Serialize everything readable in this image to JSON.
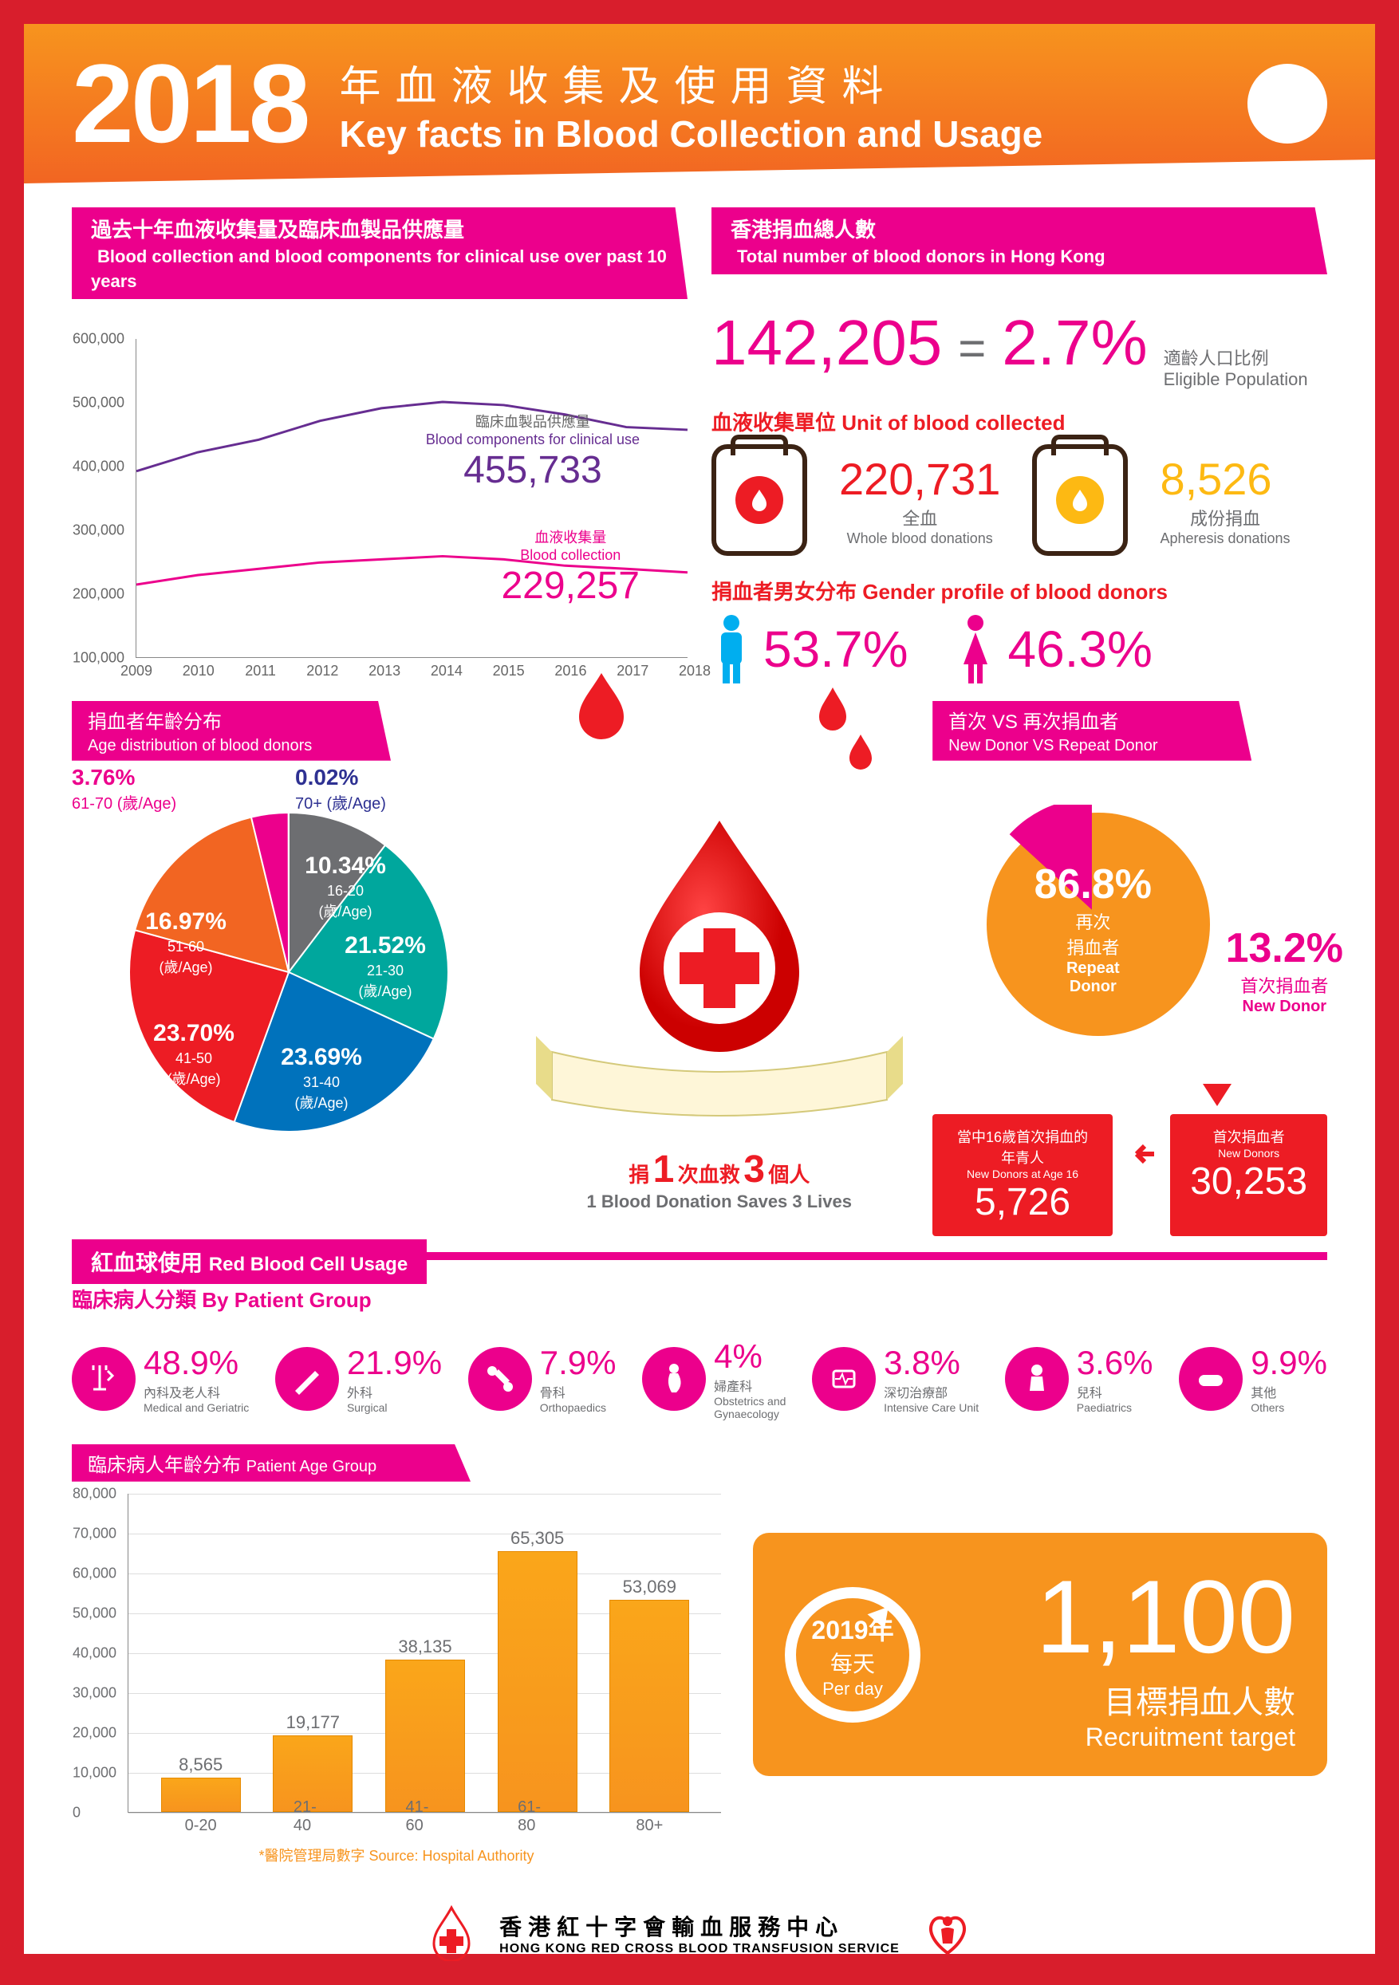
{
  "header": {
    "year": "2018",
    "title_cn": "年血液收集及使用資料",
    "title_en": "Key facts in Blood Collection and Usage"
  },
  "colors": {
    "red_primary": "#d81e2c",
    "magenta": "#ec008c",
    "orange": "#f7941e",
    "blood_red": "#ed1c24",
    "purple": "#662d91",
    "teal": "#00a79d",
    "blue": "#0072bc",
    "gray": "#6d6e71",
    "yellow": "#fdb913"
  },
  "line_chart": {
    "title_cn": "過去十年血液收集量及臨床血製品供應量",
    "title_en": "Blood collection and blood components for clinical use over past 10 years",
    "ylim": [
      100000,
      600000
    ],
    "ytick_step": 100000,
    "years": [
      "2009",
      "2010",
      "2011",
      "2012",
      "2013",
      "2014",
      "2015",
      "2016",
      "2017",
      "2018"
    ],
    "series": {
      "clinical": {
        "label_cn": "臨床血製品供應量",
        "label_en": "Blood components for clinical use",
        "value_label": "455,733",
        "color": "#662d91",
        "values": [
          390000,
          420000,
          440000,
          470000,
          490000,
          500000,
          495000,
          480000,
          460000,
          455733
        ]
      },
      "collection": {
        "label_cn": "血液收集量",
        "label_en": "Blood collection",
        "value_label": "229,257",
        "color": "#ec008c",
        "values": [
          210000,
          225000,
          235000,
          245000,
          250000,
          255000,
          250000,
          240000,
          235000,
          229257
        ]
      }
    }
  },
  "donors": {
    "title_cn": "香港捐血總人數",
    "title_en": "Total number of blood donors in Hong Kong",
    "total": "142,205",
    "equals": "=",
    "pct": "2.7%",
    "eligible_cn": "適齡人口比例",
    "eligible_en": "Eligible Population",
    "unit_head_cn": "血液收集單位",
    "unit_head_en": "Unit of blood collected",
    "whole": {
      "val": "220,731",
      "cn": "全血",
      "en": "Whole blood donations"
    },
    "apheresis": {
      "val": "8,526",
      "cn": "成份捐血",
      "en": "Apheresis donations"
    },
    "gender_head_cn": "捐血者男女分布",
    "gender_head_en": "Gender profile of blood donors",
    "male_pct": "53.7%",
    "female_pct": "46.3%"
  },
  "age_dist": {
    "title_cn": "捐血者年齡分布",
    "title_en": "Age distribution of blood donors",
    "slices": [
      {
        "pct": "10.34%",
        "age_cn": "16-20",
        "age_unit": "(歲/Age)",
        "color": "#6d6e71"
      },
      {
        "pct": "21.52%",
        "age_cn": "21-30",
        "age_unit": "(歲/Age)",
        "color": "#00a79d"
      },
      {
        "pct": "23.69%",
        "age_cn": "31-40",
        "age_unit": "(歲/Age)",
        "color": "#0072bc"
      },
      {
        "pct": "23.70%",
        "age_cn": "41-50",
        "age_unit": "(歲/Age)",
        "color": "#ed1c24"
      },
      {
        "pct": "16.97%",
        "age_cn": "51-60",
        "age_unit": "(歲/Age)",
        "color": "#f26522"
      },
      {
        "pct": "3.76%",
        "age_cn": "61-70",
        "age_unit": "(歲/Age)",
        "color": "#ec008c"
      },
      {
        "pct": "0.02%",
        "age_cn": "70+",
        "age_unit": "(歲/Age)",
        "color": "#2e3192"
      }
    ]
  },
  "center": {
    "slogan_cn_1": "捐",
    "slogan_num_1": "1",
    "slogan_cn_2": "次血救",
    "slogan_num_2": "3",
    "slogan_cn_3": "個人",
    "slogan_en": "1 Blood Donation Saves 3 Lives"
  },
  "donor_vs": {
    "title_cn": "首次 VS 再次捐血者",
    "title_en": "New Donor VS Repeat Donor",
    "repeat": {
      "pct": "86.8%",
      "cn": "再次\n捐血者",
      "en": "Repeat\nDonor",
      "color": "#f7941e"
    },
    "new": {
      "pct": "13.2%",
      "cn": "首次捐血者",
      "en": "New Donor",
      "color": "#ec008c"
    },
    "new_box": {
      "cn": "首次捐血者",
      "en": "New Donors",
      "val": "30,253"
    },
    "age16_box": {
      "cn": "當中16歲首次捐血的年青人",
      "en": "New Donors at Age 16",
      "val": "5,726"
    }
  },
  "rbc": {
    "title_cn": "紅血球使用",
    "title_en": "Red Blood Cell Usage",
    "by_group_cn": "臨床病人分類",
    "by_group_en": "By Patient Group",
    "groups": [
      {
        "pct": "48.9%",
        "cn": "內科及老人科",
        "en": "Medical and Geriatric",
        "icon": "medical"
      },
      {
        "pct": "21.9%",
        "cn": "外科",
        "en": "Surgical",
        "icon": "scalpel"
      },
      {
        "pct": "7.9%",
        "cn": "骨科",
        "en": "Orthopaedics",
        "icon": "bone"
      },
      {
        "pct": "4%",
        "cn": "婦產科",
        "en": "Obstetrics and\nGynaecology",
        "icon": "pregnant"
      },
      {
        "pct": "3.8%",
        "cn": "深切治療部",
        "en": "Intensive Care Unit",
        "icon": "icu"
      },
      {
        "pct": "3.6%",
        "cn": "兒科",
        "en": "Paediatrics",
        "icon": "child"
      },
      {
        "pct": "9.9%",
        "cn": "其他",
        "en": "Others",
        "icon": "pill"
      }
    ]
  },
  "patient_age": {
    "title_cn": "臨床病人年齡分布",
    "title_en": "Patient Age Group",
    "ylim": [
      0,
      80000
    ],
    "ytick_step": 10000,
    "bars": [
      {
        "label": "0-20",
        "value": 8565
      },
      {
        "label": "21-40",
        "value": 19177
      },
      {
        "label": "41-60",
        "value": 38135
      },
      {
        "label": "61-80",
        "value": 65305
      },
      {
        "label": "80+",
        "value": 53069
      }
    ],
    "source": "*醫院管理局數字 Source: Hospital Authority"
  },
  "target": {
    "year": "2019年",
    "per_cn": "每天",
    "per_en": "Per day",
    "num": "1,100",
    "lbl_cn": "目標捐血人數",
    "lbl_en": "Recruitment target"
  },
  "footer": {
    "cn": "香港紅十字會輸血服務中心",
    "en": "HONG KONG RED CROSS BLOOD TRANSFUSION SERVICE"
  }
}
